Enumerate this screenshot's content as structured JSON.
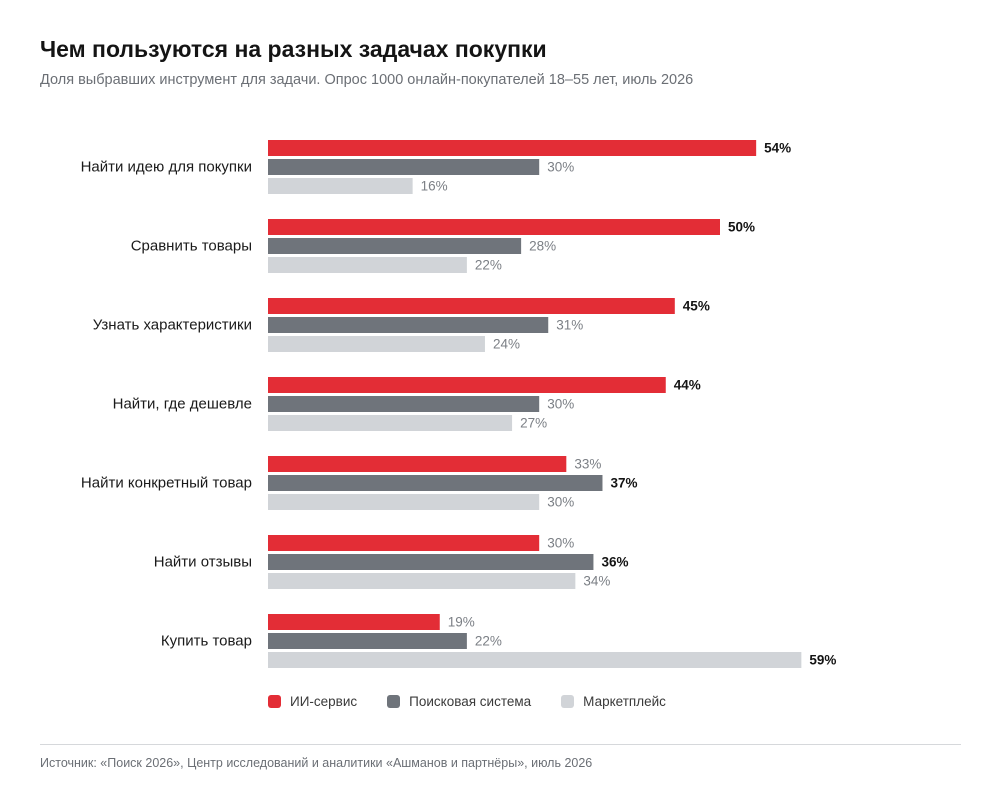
{
  "header": {
    "title": "Чем пользуются на разных задачах покупки",
    "subtitle": "Доля выбравших инструмент для задачи. Опрос 1000 онлайн-покупателей 18–55 лет, июль 2026"
  },
  "chart_data": {
    "type": "bar",
    "orientation": "horizontal",
    "categories": [
      "Найти идею для покупки",
      "Сравнить товары",
      "Узнать характеристики",
      "Найти, где дешевле",
      "Найти конкретный товар",
      "Найти отзывы",
      "Купить товар"
    ],
    "series": [
      {
        "name": "ИИ-сервис",
        "color": "#e32d36",
        "values": [
          54,
          50,
          45,
          44,
          33,
          30,
          19
        ]
      },
      {
        "name": "Поисковая система",
        "color": "#6f747b",
        "values": [
          30,
          28,
          31,
          30,
          37,
          36,
          22
        ]
      },
      {
        "name": "Маркетплейс",
        "color": "#d1d4d8",
        "values": [
          16,
          22,
          24,
          27,
          30,
          34,
          59
        ]
      }
    ],
    "value_suffix": "%",
    "xlim": [
      0,
      60
    ],
    "grid": false,
    "legend_position": "bottom"
  },
  "footer": {
    "source": "Источник: «Поиск 2026», Центр исследований и аналитики «Ашманов и партнёры», июль 2026"
  }
}
